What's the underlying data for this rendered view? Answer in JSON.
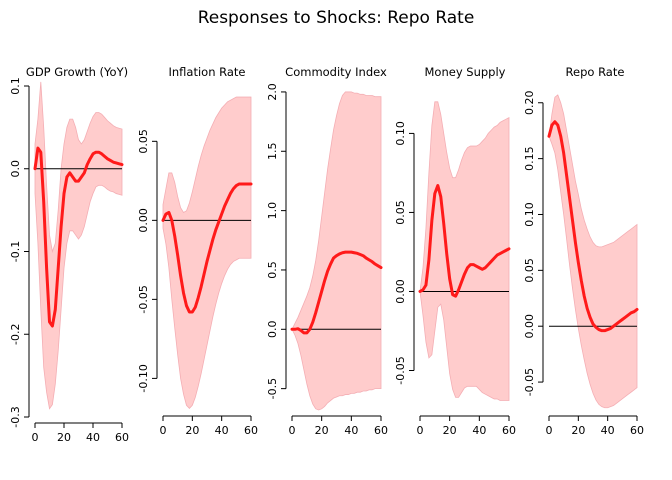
{
  "figure": {
    "title": "Responses to Shocks: Repo Rate",
    "colors": {
      "line": "#ff1a1a",
      "band": "#ffcccc",
      "band_edge": "#f4aeb4",
      "zero_line": "#000000",
      "axis": "#000000"
    }
  },
  "chart_data": [
    {
      "type": "line",
      "title": "GDP Growth (YoY)",
      "xlim": [
        0,
        60
      ],
      "ylim": [
        -0.3,
        0.1
      ],
      "xticks": [
        0,
        20,
        40,
        60
      ],
      "yticks": [
        -0.3,
        -0.2,
        -0.1,
        0.0,
        0.1
      ],
      "ytick_labels": [
        "-0.3",
        "-0.2",
        "-0.1",
        "0.0",
        "0.1"
      ],
      "x": [
        0,
        2,
        4,
        6,
        8,
        10,
        12,
        14,
        16,
        18,
        20,
        22,
        24,
        26,
        28,
        30,
        32,
        34,
        36,
        38,
        40,
        42,
        44,
        46,
        48,
        50,
        52,
        54,
        56,
        58,
        60
      ],
      "median": [
        0.0,
        0.025,
        0.02,
        -0.04,
        -0.12,
        -0.185,
        -0.19,
        -0.17,
        -0.12,
        -0.07,
        -0.03,
        -0.01,
        -0.005,
        -0.01,
        -0.015,
        -0.015,
        -0.01,
        -0.005,
        0.005,
        0.012,
        0.018,
        0.02,
        0.02,
        0.018,
        0.015,
        0.012,
        0.01,
        0.008,
        0.007,
        0.006,
        0.005
      ],
      "upper": [
        0.03,
        0.06,
        0.105,
        0.05,
        -0.02,
        -0.08,
        -0.1,
        -0.09,
        -0.05,
        0.0,
        0.03,
        0.05,
        0.06,
        0.06,
        0.05,
        0.035,
        0.03,
        0.035,
        0.045,
        0.055,
        0.063,
        0.068,
        0.068,
        0.066,
        0.062,
        0.058,
        0.055,
        0.052,
        0.05,
        0.049,
        0.048
      ],
      "lower": [
        -0.03,
        -0.09,
        -0.17,
        -0.24,
        -0.27,
        -0.29,
        -0.285,
        -0.26,
        -0.22,
        -0.17,
        -0.12,
        -0.09,
        -0.075,
        -0.075,
        -0.08,
        -0.085,
        -0.08,
        -0.07,
        -0.055,
        -0.04,
        -0.03,
        -0.022,
        -0.02,
        -0.02,
        -0.022,
        -0.025,
        -0.027,
        -0.028,
        -0.03,
        -0.031,
        -0.032
      ],
      "zero_line": true
    },
    {
      "type": "line",
      "title": "Inflation Rate",
      "xlim": [
        0,
        60
      ],
      "ylim": [
        -0.12,
        0.085
      ],
      "xticks": [
        0,
        20,
        40,
        60
      ],
      "yticks": [
        -0.1,
        -0.05,
        0.0,
        0.05
      ],
      "ytick_labels": [
        "-0.10",
        "-0.05",
        "0.00",
        "0.05"
      ],
      "x": [
        0,
        2,
        4,
        6,
        8,
        10,
        12,
        14,
        16,
        18,
        20,
        22,
        24,
        26,
        28,
        30,
        32,
        34,
        36,
        38,
        40,
        42,
        44,
        46,
        48,
        50,
        52,
        54,
        56,
        58,
        60
      ],
      "median": [
        0.0,
        0.004,
        0.005,
        0.0,
        -0.01,
        -0.022,
        -0.035,
        -0.046,
        -0.054,
        -0.058,
        -0.058,
        -0.055,
        -0.049,
        -0.042,
        -0.034,
        -0.026,
        -0.019,
        -0.012,
        -0.006,
        -0.001,
        0.004,
        0.009,
        0.013,
        0.017,
        0.02,
        0.022,
        0.023,
        0.023,
        0.023,
        0.023,
        0.023
      ],
      "upper": [
        0.01,
        0.02,
        0.03,
        0.03,
        0.024,
        0.015,
        0.008,
        0.005,
        0.006,
        0.011,
        0.018,
        0.026,
        0.034,
        0.041,
        0.047,
        0.052,
        0.057,
        0.061,
        0.065,
        0.068,
        0.071,
        0.073,
        0.075,
        0.076,
        0.077,
        0.078,
        0.078,
        0.078,
        0.078,
        0.078,
        0.078
      ],
      "lower": [
        -0.005,
        -0.015,
        -0.03,
        -0.05,
        -0.068,
        -0.085,
        -0.1,
        -0.11,
        -0.117,
        -0.119,
        -0.117,
        -0.112,
        -0.105,
        -0.097,
        -0.088,
        -0.079,
        -0.07,
        -0.061,
        -0.053,
        -0.046,
        -0.04,
        -0.035,
        -0.031,
        -0.028,
        -0.026,
        -0.025,
        -0.024,
        -0.024,
        -0.024,
        -0.024,
        -0.024
      ],
      "zero_line": true
    },
    {
      "type": "line",
      "title": "Commodity Index",
      "xlim": [
        0,
        60
      ],
      "ylim": [
        -0.68,
        2.05
      ],
      "xticks": [
        0,
        20,
        40,
        60
      ],
      "yticks": [
        -0.5,
        0.0,
        0.5,
        1.0,
        1.5,
        2.0
      ],
      "ytick_labels": [
        "-0.5",
        "0.0",
        "0.5",
        "1.0",
        "1.5",
        "2.0"
      ],
      "x": [
        0,
        2,
        4,
        6,
        8,
        10,
        12,
        14,
        16,
        18,
        20,
        22,
        24,
        26,
        28,
        30,
        32,
        34,
        36,
        38,
        40,
        42,
        44,
        46,
        48,
        50,
        52,
        54,
        56,
        58,
        60
      ],
      "median": [
        0.0,
        0.0,
        0.005,
        -0.01,
        -0.03,
        -0.03,
        0.0,
        0.06,
        0.14,
        0.23,
        0.32,
        0.41,
        0.49,
        0.55,
        0.6,
        0.62,
        0.635,
        0.645,
        0.65,
        0.65,
        0.65,
        0.645,
        0.64,
        0.63,
        0.62,
        0.6,
        0.585,
        0.57,
        0.55,
        0.535,
        0.52
      ],
      "upper": [
        0.0,
        0.05,
        0.1,
        0.16,
        0.22,
        0.28,
        0.35,
        0.45,
        0.58,
        0.75,
        0.95,
        1.15,
        1.35,
        1.52,
        1.68,
        1.8,
        1.9,
        1.97,
        2.0,
        2.0,
        2.0,
        1.99,
        1.99,
        1.98,
        1.98,
        1.97,
        1.97,
        1.97,
        1.96,
        1.96,
        1.96
      ],
      "lower": [
        0.0,
        -0.05,
        -0.12,
        -0.22,
        -0.34,
        -0.46,
        -0.56,
        -0.63,
        -0.67,
        -0.68,
        -0.67,
        -0.65,
        -0.62,
        -0.6,
        -0.58,
        -0.57,
        -0.56,
        -0.56,
        -0.55,
        -0.55,
        -0.54,
        -0.54,
        -0.53,
        -0.53,
        -0.52,
        -0.52,
        -0.51,
        -0.51,
        -0.5,
        -0.5,
        -0.5
      ],
      "zero_line": true
    },
    {
      "type": "line",
      "title": "Money Supply",
      "xlim": [
        0,
        60
      ],
      "ylim": [
        -0.075,
        0.13
      ],
      "xticks": [
        0,
        20,
        40,
        60
      ],
      "yticks": [
        -0.05,
        0.0,
        0.05,
        0.1
      ],
      "ytick_labels": [
        "-0.05",
        "0.00",
        "0.05",
        "0.10"
      ],
      "x": [
        0,
        2,
        4,
        6,
        8,
        10,
        12,
        14,
        16,
        18,
        20,
        22,
        24,
        26,
        28,
        30,
        32,
        34,
        36,
        38,
        40,
        42,
        44,
        46,
        48,
        50,
        52,
        54,
        56,
        58,
        60
      ],
      "median": [
        0.0,
        0.001,
        0.004,
        0.02,
        0.045,
        0.062,
        0.067,
        0.06,
        0.043,
        0.024,
        0.008,
        -0.002,
        -0.003,
        0.001,
        0.006,
        0.011,
        0.015,
        0.017,
        0.017,
        0.016,
        0.015,
        0.014,
        0.015,
        0.017,
        0.019,
        0.021,
        0.023,
        0.024,
        0.025,
        0.026,
        0.027
      ],
      "upper": [
        0.0,
        0.015,
        0.04,
        0.075,
        0.105,
        0.12,
        0.12,
        0.112,
        0.1,
        0.088,
        0.078,
        0.072,
        0.072,
        0.077,
        0.083,
        0.088,
        0.091,
        0.092,
        0.092,
        0.092,
        0.093,
        0.095,
        0.097,
        0.1,
        0.102,
        0.104,
        0.105,
        0.107,
        0.108,
        0.109,
        0.11
      ],
      "lower": [
        0.0,
        -0.015,
        -0.032,
        -0.042,
        -0.04,
        -0.025,
        -0.01,
        -0.008,
        -0.018,
        -0.035,
        -0.052,
        -0.062,
        -0.067,
        -0.067,
        -0.064,
        -0.061,
        -0.06,
        -0.06,
        -0.06,
        -0.06,
        -0.062,
        -0.064,
        -0.065,
        -0.066,
        -0.067,
        -0.068,
        -0.068,
        -0.069,
        -0.069,
        -0.069,
        -0.069
      ],
      "zero_line": true
    },
    {
      "type": "line",
      "title": "Repo Rate",
      "xlim": [
        0,
        60
      ],
      "ylim": [
        -0.075,
        0.215
      ],
      "xticks": [
        0,
        20,
        40,
        60
      ],
      "yticks": [
        -0.05,
        0.0,
        0.05,
        0.1,
        0.15,
        0.2
      ],
      "ytick_labels": [
        "-0.05",
        "0.00",
        "0.05",
        "0.10",
        "0.15",
        "0.20"
      ],
      "x": [
        0,
        2,
        4,
        6,
        8,
        10,
        12,
        14,
        16,
        18,
        20,
        22,
        24,
        26,
        28,
        30,
        32,
        34,
        36,
        38,
        40,
        42,
        44,
        46,
        48,
        50,
        52,
        54,
        56,
        58,
        60
      ],
      "median": [
        0.17,
        0.18,
        0.183,
        0.18,
        0.17,
        0.155,
        0.135,
        0.115,
        0.095,
        0.075,
        0.057,
        0.041,
        0.027,
        0.016,
        0.008,
        0.002,
        -0.001,
        -0.003,
        -0.004,
        -0.004,
        -0.003,
        -0.002,
        0.0,
        0.002,
        0.004,
        0.006,
        0.008,
        0.01,
        0.012,
        0.013,
        0.015
      ],
      "upper": [
        0.17,
        0.19,
        0.205,
        0.207,
        0.2,
        0.19,
        0.175,
        0.16,
        0.145,
        0.13,
        0.118,
        0.105,
        0.095,
        0.087,
        0.08,
        0.075,
        0.072,
        0.071,
        0.071,
        0.072,
        0.073,
        0.074,
        0.075,
        0.077,
        0.079,
        0.081,
        0.083,
        0.085,
        0.087,
        0.089,
        0.091
      ],
      "lower": [
        0.17,
        0.163,
        0.155,
        0.14,
        0.12,
        0.1,
        0.078,
        0.055,
        0.034,
        0.015,
        -0.002,
        -0.017,
        -0.03,
        -0.042,
        -0.052,
        -0.06,
        -0.066,
        -0.07,
        -0.072,
        -0.073,
        -0.073,
        -0.072,
        -0.071,
        -0.069,
        -0.067,
        -0.065,
        -0.063,
        -0.061,
        -0.059,
        -0.057,
        -0.055
      ],
      "zero_line": true
    }
  ]
}
